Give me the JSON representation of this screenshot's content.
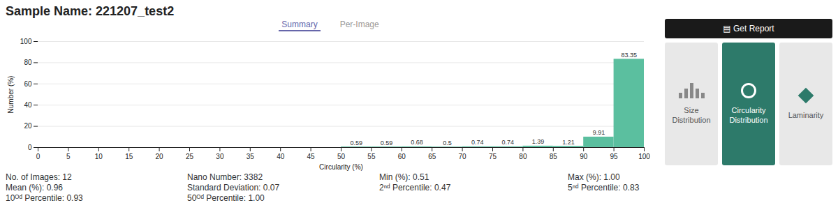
{
  "chart_data": {
    "type": "histogram",
    "title": "Sample Name: 221207_test2",
    "xlabel": "Circularity (%)",
    "ylabel": "Number (%)",
    "bins": [
      50,
      55,
      60,
      65,
      70,
      75,
      80,
      85,
      90,
      95,
      100
    ],
    "values": [
      0.59,
      0.59,
      0.68,
      0.5,
      0.74,
      0.74,
      1.39,
      1.21,
      9.91,
      83.35
    ],
    "color": "#5bbf9f",
    "xlim": [
      0,
      100
    ],
    "ylim": [
      0,
      100
    ],
    "xticks": [
      0,
      5,
      10,
      15,
      20,
      25,
      30,
      35,
      40,
      45,
      50,
      55,
      60,
      65,
      70,
      75,
      80,
      85,
      90,
      95,
      100
    ],
    "yticks": [
      0,
      20,
      40,
      60,
      80,
      100
    ],
    "grid": true,
    "data_labels": true,
    "annotations": [
      [
        "Summary",
        "Per-Image"
      ],
      [
        "Size",
        "Distribution"
      ],
      [
        "Circularity",
        "Distribution"
      ],
      [
        "Laminarity"
      ],
      [
        "▤ Get Report"
      ],
      [
        "No. of Images: 12",
        "Mean (%): 0.96",
        "10ᴼᵈ Percentile: 0.93"
      ],
      [
        "Nano Number: 3382",
        "Standard Deviation: 0.07",
        "50ᴼᵈ Percentile: 1.00"
      ],
      [
        "Min (%): 0.51",
        "2ⁿᵈ Percentile: 0.47"
      ],
      [
        "Max (%): 1.00",
        "5ⁿᵈ Percentile: 0.83"
      ]
    ]
  }
}
